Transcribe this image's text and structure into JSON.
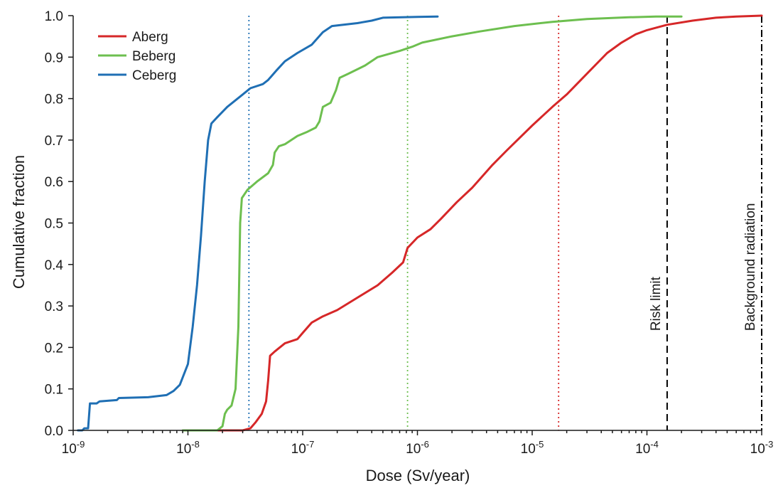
{
  "chart_data": {
    "type": "line",
    "xlabel": "Dose (Sv/year)",
    "ylabel": "Cumulative fraction",
    "x_scale": "log",
    "xlim": [
      1e-09,
      0.001
    ],
    "ylim": [
      0,
      1
    ],
    "x_tick_labels": [
      {
        "value": 1e-09,
        "base": "10",
        "exp": "-9"
      },
      {
        "value": 1e-08,
        "base": "10",
        "exp": "-8"
      },
      {
        "value": 1e-07,
        "base": "10",
        "exp": "-7"
      },
      {
        "value": 1e-06,
        "base": "10",
        "exp": "-6"
      },
      {
        "value": 1e-05,
        "base": "10",
        "exp": "-5"
      },
      {
        "value": 0.0001,
        "base": "10",
        "exp": "-4"
      },
      {
        "value": 0.001,
        "base": "10",
        "exp": "-3"
      }
    ],
    "y_ticks": [
      0,
      0.1,
      0.2,
      0.3,
      0.4,
      0.5,
      0.6,
      0.7,
      0.8,
      0.9,
      1.0
    ],
    "y_tick_labels": [
      "0.0",
      "0.1",
      "0.2",
      "0.3",
      "0.4",
      "0.5",
      "0.6",
      "0.7",
      "0.8",
      "0.9",
      "1.0"
    ],
    "grid": false,
    "legend_position": "top-left",
    "series": [
      {
        "name": "Aberg",
        "color": "#d62728",
        "points": [
          [
            1.7e-08,
            0.0
          ],
          [
            3e-08,
            0.0
          ],
          [
            3.5e-08,
            0.005
          ],
          [
            3.9e-08,
            0.02
          ],
          [
            4.4e-08,
            0.04
          ],
          [
            4.8e-08,
            0.07
          ],
          [
            5e-08,
            0.12
          ],
          [
            5.2e-08,
            0.18
          ],
          [
            5.7e-08,
            0.19
          ],
          [
            7e-08,
            0.21
          ],
          [
            9e-08,
            0.22
          ],
          [
            1e-07,
            0.235
          ],
          [
            1.2e-07,
            0.26
          ],
          [
            1.5e-07,
            0.275
          ],
          [
            2e-07,
            0.29
          ],
          [
            3e-07,
            0.32
          ],
          [
            4.5e-07,
            0.35
          ],
          [
            6e-07,
            0.38
          ],
          [
            7.5e-07,
            0.405
          ],
          [
            8.2e-07,
            0.44
          ],
          [
            1e-06,
            0.465
          ],
          [
            1.3e-06,
            0.485
          ],
          [
            1.6e-06,
            0.51
          ],
          [
            2.2e-06,
            0.55
          ],
          [
            3e-06,
            0.585
          ],
          [
            4.5e-06,
            0.64
          ],
          [
            6e-06,
            0.675
          ],
          [
            1e-05,
            0.735
          ],
          [
            1.5e-05,
            0.78
          ],
          [
            2e-05,
            0.81
          ],
          [
            3e-05,
            0.86
          ],
          [
            4.5e-05,
            0.91
          ],
          [
            6e-05,
            0.935
          ],
          [
            8e-05,
            0.955
          ],
          [
            0.0001,
            0.965
          ],
          [
            0.00015,
            0.978
          ],
          [
            0.00025,
            0.988
          ],
          [
            0.0004,
            0.995
          ],
          [
            0.0006,
            0.998
          ],
          [
            0.001,
            1.0
          ]
        ]
      },
      {
        "name": "Beberg",
        "color": "#6dbf4f",
        "points": [
          [
            9e-09,
            0.0
          ],
          [
            1.8e-08,
            0.0
          ],
          [
            2e-08,
            0.01
          ],
          [
            2.1e-08,
            0.04
          ],
          [
            2.2e-08,
            0.05
          ],
          [
            2.4e-08,
            0.06
          ],
          [
            2.6e-08,
            0.1
          ],
          [
            2.75e-08,
            0.25
          ],
          [
            2.85e-08,
            0.5
          ],
          [
            2.95e-08,
            0.56
          ],
          [
            3.3e-08,
            0.58
          ],
          [
            4e-08,
            0.6
          ],
          [
            5e-08,
            0.62
          ],
          [
            5.5e-08,
            0.64
          ],
          [
            5.7e-08,
            0.67
          ],
          [
            6.2e-08,
            0.685
          ],
          [
            7e-08,
            0.69
          ],
          [
            9e-08,
            0.71
          ],
          [
            1.1e-07,
            0.72
          ],
          [
            1.3e-07,
            0.73
          ],
          [
            1.4e-07,
            0.745
          ],
          [
            1.5e-07,
            0.78
          ],
          [
            1.75e-07,
            0.79
          ],
          [
            1.95e-07,
            0.82
          ],
          [
            2.1e-07,
            0.85
          ],
          [
            2.5e-07,
            0.86
          ],
          [
            3.5e-07,
            0.88
          ],
          [
            4.5e-07,
            0.9
          ],
          [
            7e-07,
            0.915
          ],
          [
            9e-07,
            0.925
          ],
          [
            1.1e-06,
            0.935
          ],
          [
            2e-06,
            0.95
          ],
          [
            3.5e-06,
            0.962
          ],
          [
            7e-06,
            0.975
          ],
          [
            1.5e-05,
            0.985
          ],
          [
            3e-05,
            0.992
          ],
          [
            7e-05,
            0.996
          ],
          [
            0.00012,
            0.998
          ],
          [
            0.0002,
            0.998
          ]
        ]
      },
      {
        "name": "Ceberg",
        "color": "#1f6fb4",
        "points": [
          [
            1.1e-09,
            0.0
          ],
          [
            1.2e-09,
            0.0
          ],
          [
            1.25e-09,
            0.005
          ],
          [
            1.35e-09,
            0.005
          ],
          [
            1.4e-09,
            0.065
          ],
          [
            1.6e-09,
            0.065
          ],
          [
            1.7e-09,
            0.07
          ],
          [
            2.4e-09,
            0.073
          ],
          [
            2.5e-09,
            0.078
          ],
          [
            4.5e-09,
            0.08
          ],
          [
            6.5e-09,
            0.085
          ],
          [
            7.5e-09,
            0.095
          ],
          [
            8.5e-09,
            0.11
          ],
          [
            1e-08,
            0.16
          ],
          [
            1.1e-08,
            0.25
          ],
          [
            1.2e-08,
            0.35
          ],
          [
            1.3e-08,
            0.47
          ],
          [
            1.4e-08,
            0.6
          ],
          [
            1.5e-08,
            0.7
          ],
          [
            1.6e-08,
            0.74
          ],
          [
            1.8e-08,
            0.755
          ],
          [
            2.2e-08,
            0.78
          ],
          [
            3e-08,
            0.81
          ],
          [
            3.5e-08,
            0.825
          ],
          [
            4.5e-08,
            0.835
          ],
          [
            5e-08,
            0.845
          ],
          [
            6e-08,
            0.87
          ],
          [
            7e-08,
            0.89
          ],
          [
            9e-08,
            0.91
          ],
          [
            1.2e-07,
            0.93
          ],
          [
            1.5e-07,
            0.96
          ],
          [
            1.8e-07,
            0.975
          ],
          [
            3e-07,
            0.982
          ],
          [
            4e-07,
            0.988
          ],
          [
            5e-07,
            0.995
          ],
          [
            1e-06,
            0.997
          ],
          [
            1.5e-06,
            0.998
          ]
        ]
      }
    ],
    "reference_lines": [
      {
        "x": 3.4e-08,
        "color": "#1f6fb4",
        "style": "dotted"
      },
      {
        "x": 8.2e-07,
        "color": "#6dbf4f",
        "style": "dotted"
      },
      {
        "x": 1.7e-05,
        "color": "#d62728",
        "style": "dotted"
      },
      {
        "x": 0.00015,
        "color": "#000000",
        "style": "dashed",
        "label": "Risk limit"
      },
      {
        "x": 0.001,
        "color": "#000000",
        "style": "dashdot",
        "label": "Background radiation"
      }
    ]
  }
}
